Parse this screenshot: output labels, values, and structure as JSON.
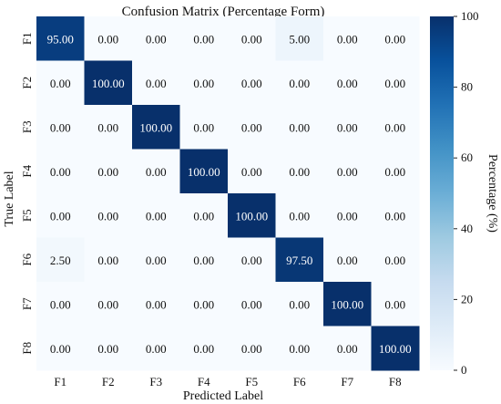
{
  "chart_data": {
    "type": "heatmap",
    "title": "Confusion Matrix (Percentage Form)",
    "xlabel": "Predicted Label",
    "ylabel": "True Label",
    "x_categories": [
      "F1",
      "F2",
      "F3",
      "F4",
      "F5",
      "F6",
      "F7",
      "F8"
    ],
    "y_categories": [
      "F1",
      "F2",
      "F3",
      "F4",
      "F5",
      "F6",
      "F7",
      "F8"
    ],
    "values": [
      [
        95.0,
        0.0,
        0.0,
        0.0,
        0.0,
        5.0,
        0.0,
        0.0
      ],
      [
        0.0,
        100.0,
        0.0,
        0.0,
        0.0,
        0.0,
        0.0,
        0.0
      ],
      [
        0.0,
        0.0,
        100.0,
        0.0,
        0.0,
        0.0,
        0.0,
        0.0
      ],
      [
        0.0,
        0.0,
        0.0,
        100.0,
        0.0,
        0.0,
        0.0,
        0.0
      ],
      [
        0.0,
        0.0,
        0.0,
        0.0,
        100.0,
        0.0,
        0.0,
        0.0
      ],
      [
        2.5,
        0.0,
        0.0,
        0.0,
        0.0,
        97.5,
        0.0,
        0.0
      ],
      [
        0.0,
        0.0,
        0.0,
        0.0,
        0.0,
        0.0,
        100.0,
        0.0
      ],
      [
        0.0,
        0.0,
        0.0,
        0.0,
        0.0,
        0.0,
        0.0,
        100.0
      ]
    ],
    "value_format_decimals": 2,
    "colorbar": {
      "label": "Percentage (%)",
      "range": [
        0,
        100
      ],
      "ticks": [
        0,
        20,
        40,
        60,
        80,
        100
      ]
    },
    "colormap": [
      "#f7fbff",
      "#deebf7",
      "#c6dbef",
      "#9ecae1",
      "#6baed6",
      "#4292c6",
      "#2171b5",
      "#08519c",
      "#08306b"
    ],
    "grid": false
  }
}
